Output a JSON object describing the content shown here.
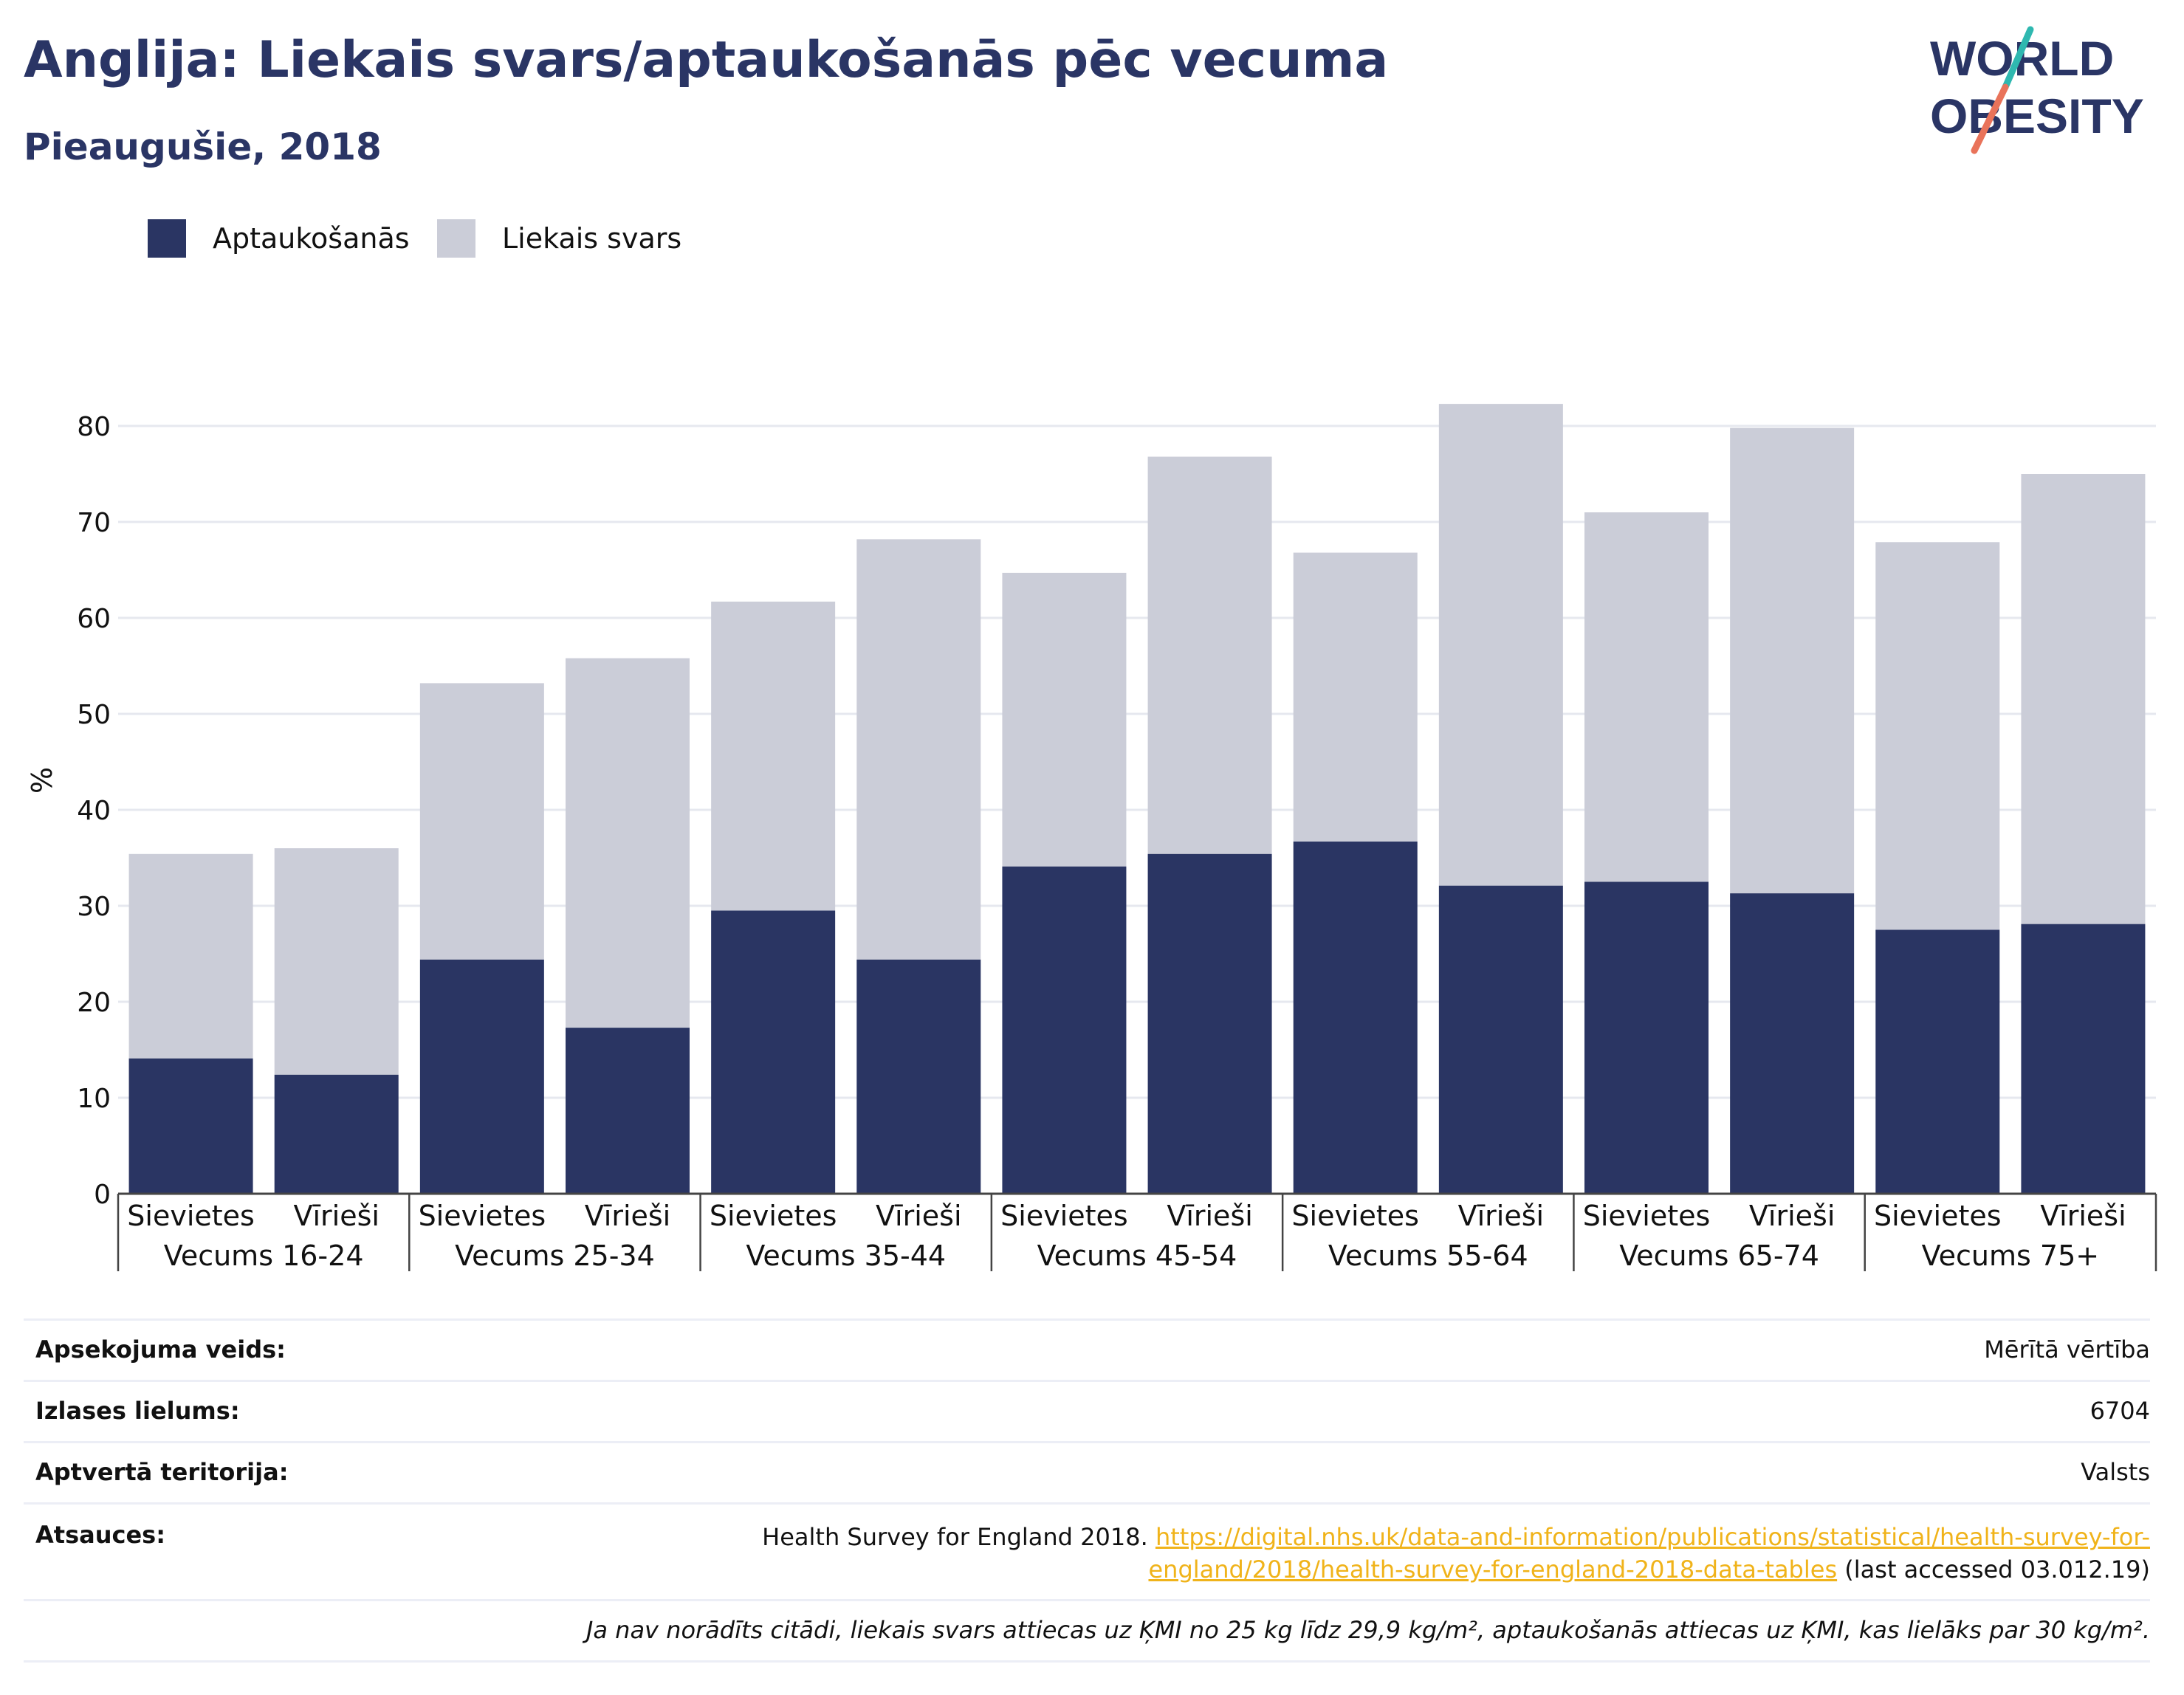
{
  "title": "Anglija: Liekais svars/aptaukošanās pēc vecuma",
  "subtitle": "Pieaugušie, 2018",
  "logo": {
    "line1": "WORLD",
    "line2": "OBESITY",
    "accent_colors": [
      "#2fb8b0",
      "#e9735a"
    ]
  },
  "colors": {
    "obesity": "#2a3563",
    "overweight": "#cbcdd8",
    "title": "#2a3565",
    "link": "#f0b31a"
  },
  "chart_data": {
    "type": "bar",
    "stacked": true,
    "title": "Anglija: Liekais svars/aptaukošanās pēc vecuma",
    "subtitle": "Pieaugušie, 2018",
    "ylabel": "%",
    "ylim": [
      0,
      85
    ],
    "yticks": [
      0,
      10,
      20,
      30,
      40,
      50,
      60,
      70,
      80
    ],
    "grid": true,
    "legend_position": "top-left",
    "groups": [
      "Vecums 16-24",
      "Vecums 25-34",
      "Vecums 35-44",
      "Vecums 45-54",
      "Vecums 55-64",
      "Vecums 65-74",
      "Vecums 75+"
    ],
    "categories": [
      "Sievietes",
      "Vīrieši",
      "Sievietes",
      "Vīrieši",
      "Sievietes",
      "Vīrieši",
      "Sievietes",
      "Vīrieši",
      "Sievietes",
      "Vīrieši",
      "Sievietes",
      "Vīrieši",
      "Sievietes",
      "Vīrieši"
    ],
    "series": [
      {
        "name": "Aptaukošanās",
        "color": "#2a3563",
        "values": [
          14.1,
          12.4,
          24.4,
          17.3,
          29.5,
          24.4,
          34.1,
          35.4,
          36.7,
          32.1,
          32.5,
          31.3,
          27.5,
          28.1
        ]
      },
      {
        "name": "Liekais svars",
        "color": "#cbcdd8",
        "values": [
          21.3,
          23.6,
          28.8,
          38.5,
          32.2,
          43.8,
          30.6,
          41.4,
          30.1,
          50.2,
          38.5,
          48.5,
          40.4,
          46.9
        ]
      }
    ]
  },
  "footer": {
    "rows": [
      {
        "label": "Apsekojuma veids:",
        "value": "Mērītā vērtība"
      },
      {
        "label": "Izlases lielums:",
        "value": "6704"
      },
      {
        "label": "Aptvertā teritorija:",
        "value": "Valsts"
      }
    ],
    "sources_label": "Atsauces:",
    "sources_text": "Health Survey for England 2018.",
    "sources_link": "https://digital.nhs.uk/data-and-information/publications/statistical/health-survey-for-england/2018/health-survey-for-england-2018-data-tables",
    "sources_suffix": "(last accessed 03.012.19)",
    "note": "Ja nav norādīts citādi, liekais svars attiecas uz ĶMI no 25 kg līdz 29,9 kg/m², aptaukošanās attiecas uz ĶMI, kas lielāks par 30 kg/m²."
  }
}
